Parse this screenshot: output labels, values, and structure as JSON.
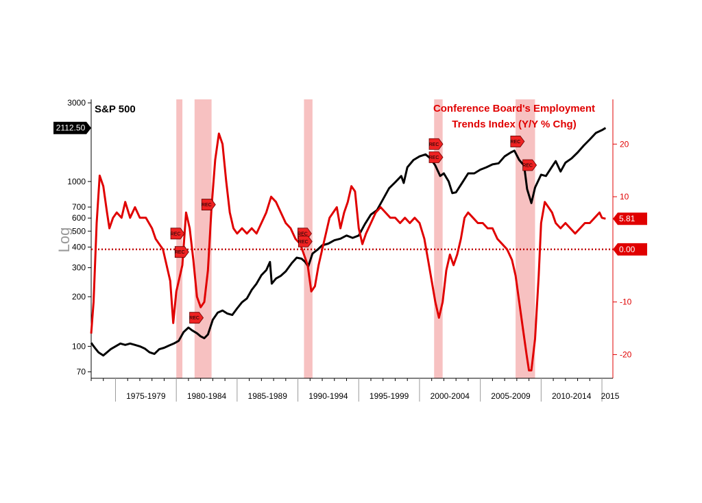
{
  "chart_data": {
    "type": "line",
    "left_title": "S&P 500",
    "right_title_line1": "Conference Board's Employment",
    "right_title_line2": "Trends Index (Y/Y % Chg)",
    "left_axis_label": "Log",
    "left_axis": {
      "scale": "log",
      "ticks": [
        70,
        100,
        200,
        300,
        400,
        500,
        600,
        700,
        1000,
        3000
      ],
      "range": [
        64,
        3150
      ]
    },
    "right_axis": {
      "scale": "linear",
      "ticks": [
        -20,
        -10,
        10,
        20
      ],
      "range": [
        -24.5,
        28.5
      ]
    },
    "x_range": [
      1973.0,
      2015.9
    ],
    "x_ticks": [
      "1975-1979",
      "1980-1984",
      "1985-1989",
      "1990-1994",
      "1995-1999",
      "2000-2004",
      "2005-2009",
      "2010-2014",
      "2015"
    ],
    "last_value_tags": {
      "sp500": "2112.50",
      "eti": "5.81",
      "zero": "0.00"
    },
    "recessions": [
      [
        1980.0,
        1980.5
      ],
      [
        1981.5,
        1982.9
      ],
      [
        1990.5,
        1991.2
      ],
      [
        2001.2,
        2001.9
      ],
      [
        2007.9,
        2009.5
      ]
    ],
    "rec_label": "REC",
    "rec_markers": [
      {
        "x": 1980.05,
        "side": "eti",
        "y": 3.0
      },
      {
        "x": 1980.4,
        "side": "eti",
        "y": -0.5
      },
      {
        "x": 1981.6,
        "side": "eti",
        "y": -13.0
      },
      {
        "x": 1982.6,
        "side": "eti",
        "y": 8.5
      },
      {
        "x": 1990.5,
        "side": "eti",
        "y": 3.0
      },
      {
        "x": 1990.55,
        "side": "eti",
        "y": 1.5
      },
      {
        "x": 2001.3,
        "side": "eti",
        "y": 20.0
      },
      {
        "x": 2001.3,
        "side": "eti",
        "y": 17.5
      },
      {
        "x": 2008.0,
        "side": "eti",
        "y": 20.5
      },
      {
        "x": 2009.0,
        "side": "eti",
        "y": 16.0
      }
    ],
    "series": [
      {
        "name": "S&P 500",
        "color": "#000000",
        "axis": "left",
        "points": [
          [
            1973.0,
            105
          ],
          [
            1973.3,
            98
          ],
          [
            1973.6,
            92
          ],
          [
            1974.0,
            88
          ],
          [
            1974.3,
            92
          ],
          [
            1974.6,
            96
          ],
          [
            1975.0,
            100
          ],
          [
            1975.4,
            104
          ],
          [
            1975.8,
            102
          ],
          [
            1976.2,
            104
          ],
          [
            1976.6,
            102
          ],
          [
            1977.0,
            100
          ],
          [
            1977.4,
            97
          ],
          [
            1977.8,
            92
          ],
          [
            1978.2,
            90
          ],
          [
            1978.6,
            96
          ],
          [
            1979.0,
            98
          ],
          [
            1979.4,
            101
          ],
          [
            1979.8,
            104
          ],
          [
            1980.2,
            108
          ],
          [
            1980.6,
            122
          ],
          [
            1981.0,
            130
          ],
          [
            1981.3,
            125
          ],
          [
            1981.7,
            120
          ],
          [
            1982.0,
            115
          ],
          [
            1982.3,
            112
          ],
          [
            1982.6,
            118
          ],
          [
            1983.0,
            145
          ],
          [
            1983.4,
            160
          ],
          [
            1983.8,
            165
          ],
          [
            1984.2,
            158
          ],
          [
            1984.6,
            155
          ],
          [
            1985.0,
            170
          ],
          [
            1985.4,
            185
          ],
          [
            1985.8,
            195
          ],
          [
            1986.2,
            220
          ],
          [
            1986.6,
            240
          ],
          [
            1987.0,
            270
          ],
          [
            1987.4,
            290
          ],
          [
            1987.7,
            325
          ],
          [
            1987.85,
            240
          ],
          [
            1988.2,
            258
          ],
          [
            1988.6,
            268
          ],
          [
            1989.0,
            285
          ],
          [
            1989.5,
            320
          ],
          [
            1989.9,
            345
          ],
          [
            1990.3,
            340
          ],
          [
            1990.6,
            325
          ],
          [
            1990.85,
            305
          ],
          [
            1991.2,
            365
          ],
          [
            1991.6,
            385
          ],
          [
            1992.0,
            410
          ],
          [
            1992.5,
            420
          ],
          [
            1993.0,
            440
          ],
          [
            1993.5,
            450
          ],
          [
            1994.0,
            470
          ],
          [
            1994.5,
            455
          ],
          [
            1995.0,
            470
          ],
          [
            1995.5,
            550
          ],
          [
            1996.0,
            630
          ],
          [
            1996.5,
            670
          ],
          [
            1997.0,
            780
          ],
          [
            1997.5,
            910
          ],
          [
            1998.0,
            990
          ],
          [
            1998.5,
            1080
          ],
          [
            1998.7,
            980
          ],
          [
            1999.0,
            1220
          ],
          [
            1999.5,
            1350
          ],
          [
            2000.0,
            1420
          ],
          [
            2000.5,
            1460
          ],
          [
            2000.9,
            1380
          ],
          [
            2001.3,
            1250
          ],
          [
            2001.7,
            1080
          ],
          [
            2002.0,
            1120
          ],
          [
            2002.4,
            1000
          ],
          [
            2002.7,
            850
          ],
          [
            2003.0,
            860
          ],
          [
            2003.5,
            980
          ],
          [
            2004.0,
            1120
          ],
          [
            2004.5,
            1120
          ],
          [
            2005.0,
            1180
          ],
          [
            2005.5,
            1220
          ],
          [
            2006.0,
            1270
          ],
          [
            2006.5,
            1290
          ],
          [
            2007.0,
            1420
          ],
          [
            2007.5,
            1500
          ],
          [
            2007.8,
            1540
          ],
          [
            2008.2,
            1350
          ],
          [
            2008.6,
            1250
          ],
          [
            2008.85,
            900
          ],
          [
            2009.2,
            740
          ],
          [
            2009.5,
            920
          ],
          [
            2010.0,
            1100
          ],
          [
            2010.4,
            1080
          ],
          [
            2010.8,
            1200
          ],
          [
            2011.2,
            1330
          ],
          [
            2011.6,
            1150
          ],
          [
            2012.0,
            1300
          ],
          [
            2012.5,
            1380
          ],
          [
            2013.0,
            1500
          ],
          [
            2013.5,
            1650
          ],
          [
            2014.0,
            1800
          ],
          [
            2014.5,
            1970
          ],
          [
            2015.0,
            2050
          ],
          [
            2015.3,
            2112.5
          ]
        ]
      },
      {
        "name": "Conference Board's Employment Trends Index (Y/Y % Chg)",
        "color": "#e00000",
        "axis": "right",
        "points": [
          [
            1973.0,
            -16
          ],
          [
            1973.2,
            -10
          ],
          [
            1973.45,
            5
          ],
          [
            1973.7,
            14
          ],
          [
            1974.0,
            12
          ],
          [
            1974.3,
            7
          ],
          [
            1974.5,
            4
          ],
          [
            1974.8,
            6
          ],
          [
            1975.1,
            7
          ],
          [
            1975.5,
            6
          ],
          [
            1975.8,
            9
          ],
          [
            1976.2,
            6
          ],
          [
            1976.6,
            8
          ],
          [
            1977.0,
            6
          ],
          [
            1977.5,
            6
          ],
          [
            1978.0,
            4
          ],
          [
            1978.3,
            2
          ],
          [
            1978.6,
            1
          ],
          [
            1978.9,
            0
          ],
          [
            1979.2,
            -3
          ],
          [
            1979.5,
            -6
          ],
          [
            1979.75,
            -14
          ],
          [
            1980.0,
            -8
          ],
          [
            1980.3,
            -5
          ],
          [
            1980.5,
            -3
          ],
          [
            1980.8,
            7
          ],
          [
            1981.1,
            4
          ],
          [
            1981.4,
            -2
          ],
          [
            1981.7,
            -9
          ],
          [
            1982.0,
            -11
          ],
          [
            1982.3,
            -10
          ],
          [
            1982.6,
            -4
          ],
          [
            1982.9,
            8
          ],
          [
            1983.2,
            17
          ],
          [
            1983.5,
            22
          ],
          [
            1983.8,
            20
          ],
          [
            1984.1,
            13
          ],
          [
            1984.4,
            7
          ],
          [
            1984.7,
            4
          ],
          [
            1985.0,
            3
          ],
          [
            1985.4,
            4
          ],
          [
            1985.8,
            3
          ],
          [
            1986.2,
            4
          ],
          [
            1986.6,
            3
          ],
          [
            1987.0,
            5
          ],
          [
            1987.4,
            7
          ],
          [
            1987.8,
            10
          ],
          [
            1988.2,
            9
          ],
          [
            1988.6,
            7
          ],
          [
            1989.0,
            5
          ],
          [
            1989.4,
            4
          ],
          [
            1989.8,
            2
          ],
          [
            1990.2,
            1
          ],
          [
            1990.5,
            -1
          ],
          [
            1990.8,
            -3
          ],
          [
            1991.1,
            -8
          ],
          [
            1991.4,
            -7
          ],
          [
            1991.7,
            -3
          ],
          [
            1992.0,
            0
          ],
          [
            1992.3,
            3
          ],
          [
            1992.6,
            6
          ],
          [
            1992.9,
            7
          ],
          [
            1993.2,
            8
          ],
          [
            1993.5,
            4
          ],
          [
            1993.8,
            7
          ],
          [
            1994.1,
            9
          ],
          [
            1994.4,
            12
          ],
          [
            1994.7,
            11
          ],
          [
            1995.0,
            4
          ],
          [
            1995.3,
            1
          ],
          [
            1995.6,
            3
          ],
          [
            1996.0,
            5
          ],
          [
            1996.4,
            7
          ],
          [
            1996.8,
            8
          ],
          [
            1997.2,
            7
          ],
          [
            1997.6,
            6
          ],
          [
            1998.0,
            6
          ],
          [
            1998.4,
            5
          ],
          [
            1998.8,
            6
          ],
          [
            1999.2,
            5
          ],
          [
            1999.6,
            6
          ],
          [
            2000.0,
            5
          ],
          [
            2000.4,
            2
          ],
          [
            2000.7,
            -2
          ],
          [
            2001.0,
            -6
          ],
          [
            2001.3,
            -10
          ],
          [
            2001.6,
            -13
          ],
          [
            2001.9,
            -10
          ],
          [
            2002.2,
            -4
          ],
          [
            2002.5,
            -1
          ],
          [
            2002.8,
            -3
          ],
          [
            2003.1,
            -1
          ],
          [
            2003.4,
            2
          ],
          [
            2003.7,
            6
          ],
          [
            2004.0,
            7
          ],
          [
            2004.4,
            6
          ],
          [
            2004.8,
            5
          ],
          [
            2005.2,
            5
          ],
          [
            2005.6,
            4
          ],
          [
            2006.0,
            4
          ],
          [
            2006.4,
            2
          ],
          [
            2006.8,
            1
          ],
          [
            2007.2,
            0
          ],
          [
            2007.6,
            -2
          ],
          [
            2007.9,
            -5
          ],
          [
            2008.2,
            -10
          ],
          [
            2008.5,
            -15
          ],
          [
            2008.8,
            -20
          ],
          [
            2009.0,
            -23
          ],
          [
            2009.2,
            -23
          ],
          [
            2009.5,
            -17
          ],
          [
            2009.8,
            -5
          ],
          [
            2010.0,
            5
          ],
          [
            2010.3,
            9
          ],
          [
            2010.6,
            8
          ],
          [
            2010.9,
            7
          ],
          [
            2011.2,
            5
          ],
          [
            2011.6,
            4
          ],
          [
            2012.0,
            5
          ],
          [
            2012.4,
            4
          ],
          [
            2012.8,
            3
          ],
          [
            2013.2,
            4
          ],
          [
            2013.6,
            5
          ],
          [
            2014.0,
            5
          ],
          [
            2014.4,
            6
          ],
          [
            2014.8,
            7
          ],
          [
            2015.0,
            6
          ],
          [
            2015.3,
            5.81
          ]
        ]
      }
    ],
    "zero_line": {
      "value": 0,
      "color": "#c00000",
      "style": "dotted"
    },
    "colors": {
      "recession_band": "#f6b6b6",
      "tag_black": "#000000",
      "tag_red": "#e00000"
    }
  }
}
